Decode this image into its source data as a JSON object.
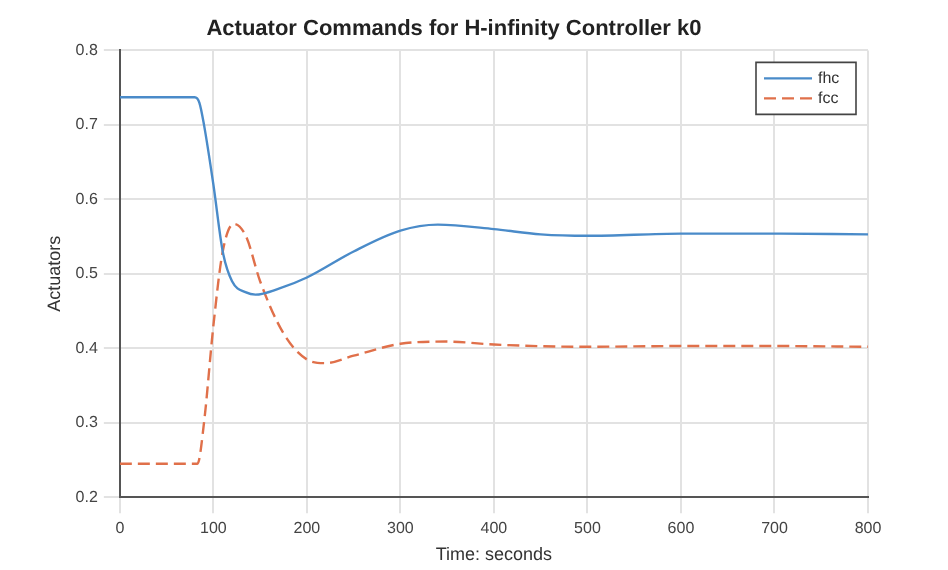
{
  "chart_data": {
    "type": "line",
    "title": "Actuator Commands for H-infinity Controller k0",
    "xlabel": "Time: seconds",
    "ylabel": "Actuators",
    "xlim": [
      0,
      800
    ],
    "xticks": [
      0,
      100,
      200,
      300,
      400,
      500,
      600,
      700,
      800
    ],
    "ylim": [
      0.2,
      0.8
    ],
    "yticks": [
      0.2,
      0.3,
      0.4,
      0.5,
      0.6,
      0.7,
      0.8
    ],
    "grid": true,
    "legend": "top right",
    "series": [
      {
        "name": "fhc",
        "color": "#4a8bc9",
        "line_style": "solid",
        "x": [
          0,
          80,
          85,
          90,
          100,
          110,
          120,
          135,
          145,
          170,
          200,
          250,
          300,
          340,
          400,
          450,
          500,
          600,
          700,
          800
        ],
        "values": [
          0.737,
          0.737,
          0.73,
          0.7,
          0.62,
          0.53,
          0.49,
          0.475,
          0.472,
          0.48,
          0.495,
          0.53,
          0.558,
          0.566,
          0.56,
          0.553,
          0.551,
          0.554,
          0.554,
          0.553
        ]
      },
      {
        "name": "fcc",
        "color": "#e0704a",
        "line_style": "dashed",
        "x": [
          0,
          83,
          90,
          100,
          110,
          122,
          135,
          150,
          175,
          200,
          220,
          250,
          300,
          350,
          400,
          500,
          600,
          700,
          800
        ],
        "values": [
          0.245,
          0.245,
          0.3,
          0.43,
          0.53,
          0.567,
          0.55,
          0.49,
          0.42,
          0.385,
          0.38,
          0.39,
          0.406,
          0.409,
          0.405,
          0.402,
          0.403,
          0.403,
          0.402
        ]
      }
    ]
  }
}
